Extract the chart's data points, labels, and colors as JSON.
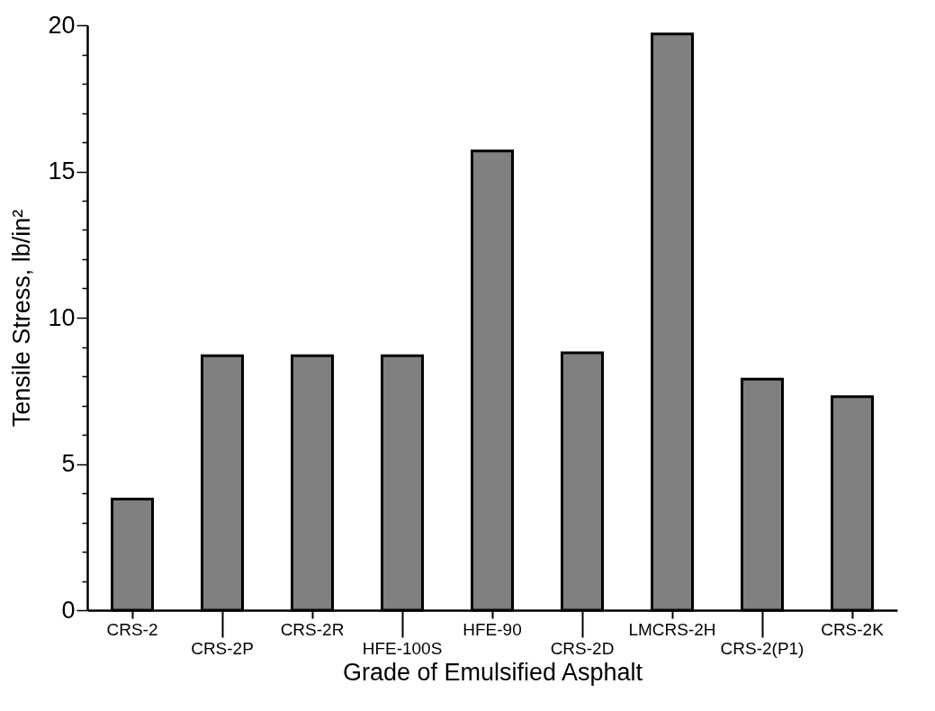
{
  "chart_data": {
    "type": "bar",
    "xlabel": "Grade of Emulsified Asphalt",
    "ylabel": "Tensile Stress, lb/in²",
    "categories": [
      "CRS-2",
      "CRS-2P",
      "CRS-2R",
      "HFE-100S",
      "HFE-90",
      "CRS-2D",
      "LMCRS-2H",
      "CRS-2(P1)",
      "CRS-2K"
    ],
    "values": [
      3.8,
      8.7,
      8.7,
      8.7,
      15.7,
      8.8,
      19.7,
      7.9,
      7.3
    ],
    "color": "#808080",
    "ylim": [
      0,
      20
    ],
    "yticks": [
      0,
      {
        "value": 1,
        "label": null
      },
      {
        "value": 2,
        "label": null
      },
      {
        "value": 3,
        "label": null
      },
      {
        "value": 4,
        "label": null
      },
      5,
      {
        "value": 6,
        "label": null
      },
      {
        "value": 7,
        "label": null
      },
      {
        "value": 8,
        "label": null
      },
      {
        "value": 9,
        "label": null
      },
      10,
      {
        "value": 11,
        "label": null
      },
      {
        "value": 12,
        "label": null
      },
      {
        "value": 13,
        "label": null
      },
      {
        "value": 14,
        "label": null
      },
      15,
      {
        "value": 16,
        "label": null
      },
      {
        "value": 17,
        "label": null
      },
      {
        "value": 18,
        "label": null
      },
      {
        "value": 19,
        "label": null
      },
      20
    ],
    "grid": false
  }
}
